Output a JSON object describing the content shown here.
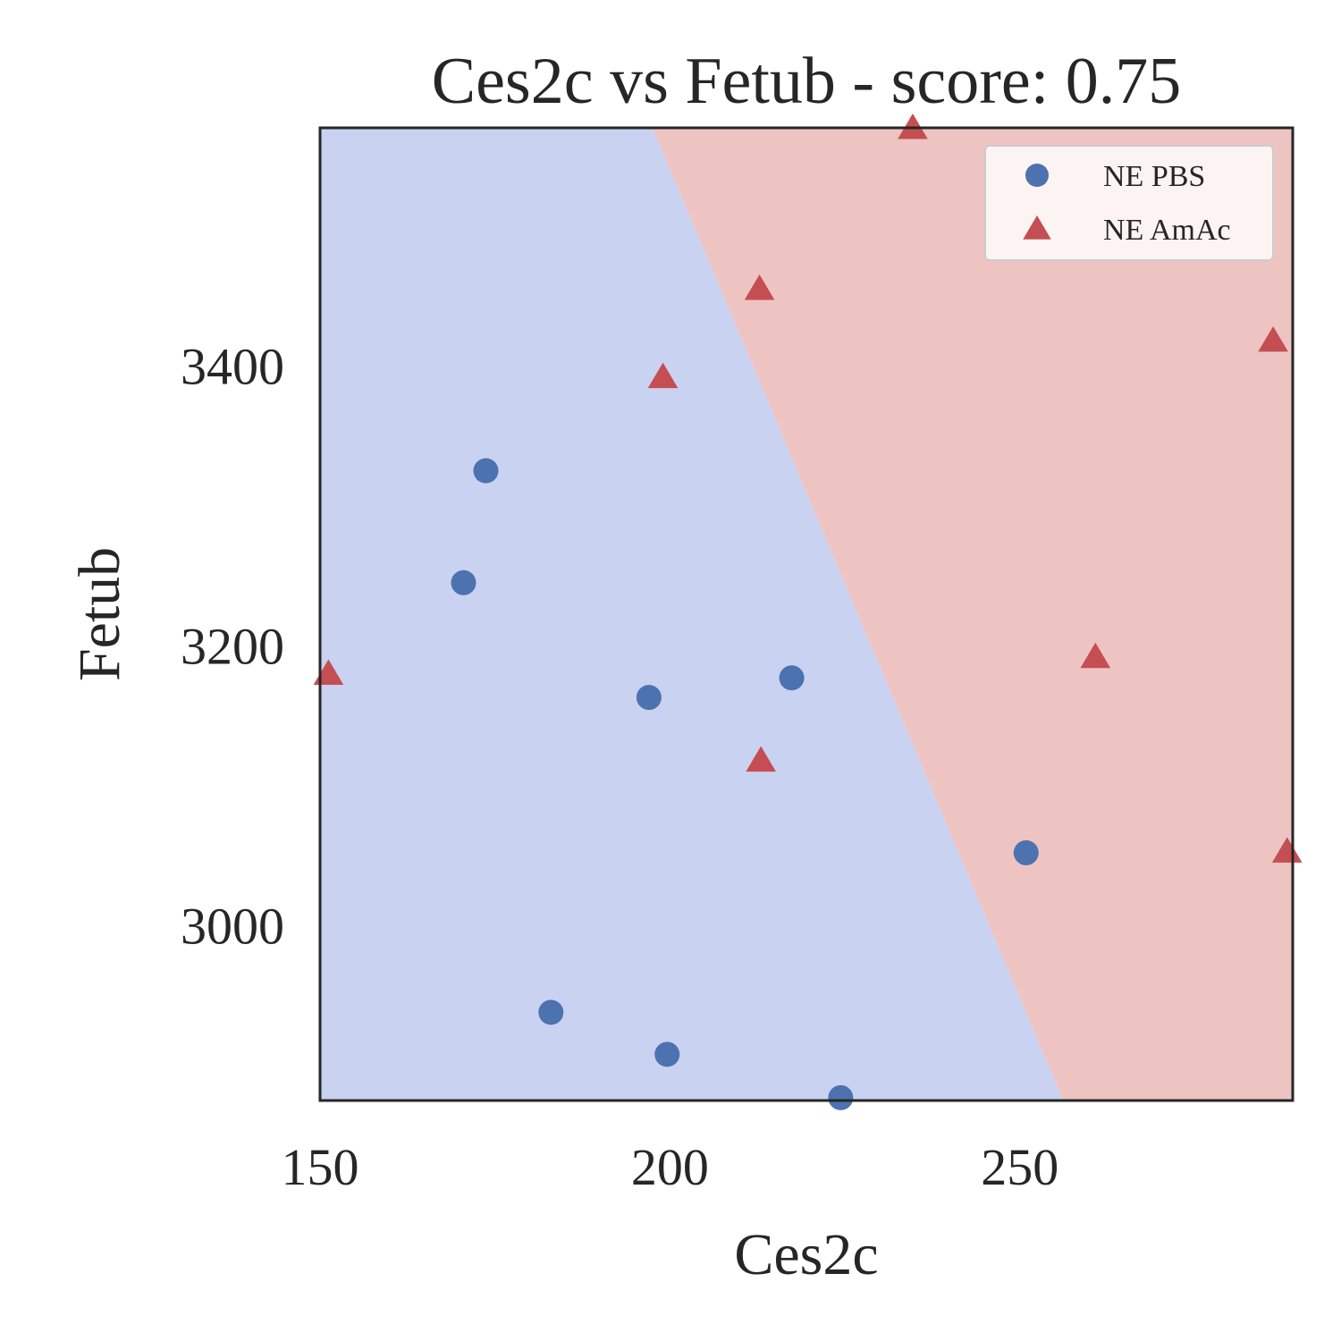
{
  "chart_data": {
    "type": "scatter",
    "title": "Ces2c vs Fetub - score: 0.75",
    "xlabel": "Ces2c",
    "ylabel": "Fetub",
    "xlim": [
      150,
      289
    ],
    "ylim": [
      2875,
      3570
    ],
    "xticks": [
      150,
      200,
      250
    ],
    "yticks": [
      3000,
      3200,
      3400
    ],
    "grid": false,
    "legend": {
      "placement": "top-right"
    },
    "decision_boundary": {
      "points": [
        [
          197.5,
          3570
        ],
        [
          256.2,
          2875
        ]
      ],
      "left_region": "NE PBS",
      "right_region": "NE AmAc"
    },
    "series": [
      {
        "name": "NE PBS",
        "marker": "circle",
        "color": "#4c72b0",
        "points": [
          [
            173.7,
            3325
          ],
          [
            170.5,
            3245
          ],
          [
            197.0,
            3163
          ],
          [
            217.4,
            3177
          ],
          [
            183.0,
            2938
          ],
          [
            199.6,
            2908
          ],
          [
            224.4,
            2877
          ],
          [
            250.9,
            3052
          ]
        ]
      },
      {
        "name": "NE AmAc",
        "marker": "triangle",
        "color": "#c44e52",
        "points": [
          [
            234.7,
            3570
          ],
          [
            212.8,
            3455
          ],
          [
            199.0,
            3392
          ],
          [
            151.2,
            3180
          ],
          [
            213.0,
            3118
          ],
          [
            260.8,
            3192
          ],
          [
            286.2,
            3418
          ],
          [
            288.2,
            3053
          ]
        ]
      }
    ],
    "region_colors": {
      "left": "#c9d2f1",
      "right": "#eec4c3"
    }
  }
}
